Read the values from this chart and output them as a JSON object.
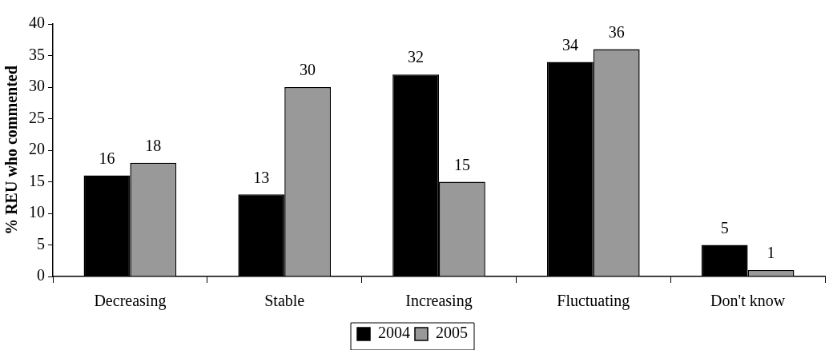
{
  "chart_data": {
    "type": "bar",
    "ylabel": "% REU who commented",
    "categories": [
      "Decreasing",
      "Stable",
      "Increasing",
      "Fluctuating",
      "Don't know"
    ],
    "series": [
      {
        "name": "2004",
        "color": "#000000",
        "values": [
          16,
          13,
          32,
          34,
          5
        ]
      },
      {
        "name": "2005",
        "color": "#999999",
        "values": [
          18,
          30,
          15,
          36,
          1
        ]
      }
    ],
    "ylim": [
      0,
      40
    ],
    "yticks": [
      0,
      5,
      10,
      15,
      20,
      25,
      30,
      35,
      40
    ],
    "grid": false,
    "legend": "bottom",
    "data_labels": true
  }
}
